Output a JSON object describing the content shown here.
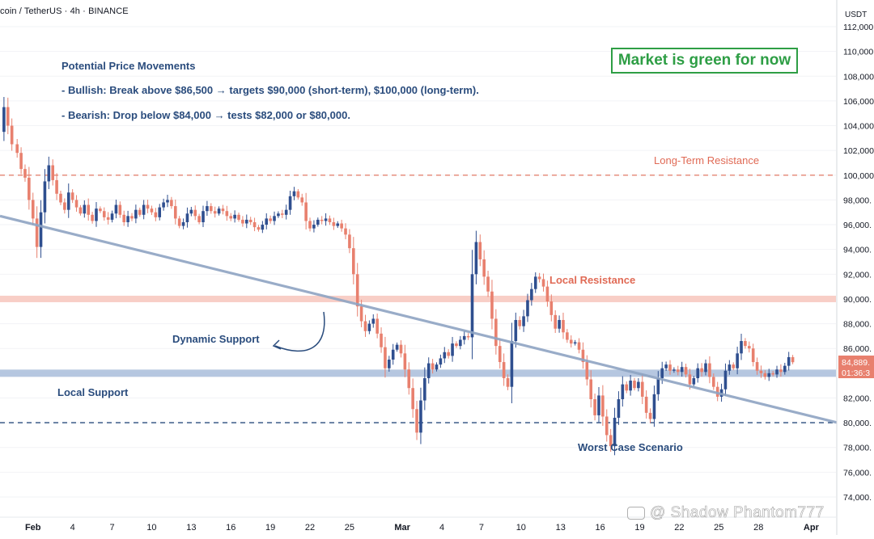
{
  "header": {
    "title": "coin / TetherUS · 4h · BINANCE",
    "currency": "USDT"
  },
  "colors": {
    "up": "#2f4f8f",
    "down": "#e8806e",
    "resistance": "#e06a55",
    "support_band": "#a9bddb",
    "local_resistance_band": "#f7c9c0",
    "trendline": "#8ea4c3",
    "annotation_blue": "#2a4c7d",
    "green": "#2e9e45",
    "price_tag": "#e8806e"
  },
  "annotations": {
    "heading": "Potential Price Movements",
    "bullish": "- Bullish: Break above $86,500 → targets $90,000 (short-term), $100,000 (long-term).",
    "bearish": "- Bearish: Drop below $84,000 → tests $82,000 or $80,000.",
    "green_box": "Market is green for now",
    "long_term_resistance": "Long-Term Resistance",
    "local_resistance": "Local Resistance",
    "dynamic_support": "Dynamic Support",
    "local_support": "Local Support",
    "worst_case": "Worst Case Scenario"
  },
  "price_tag": {
    "value": "84,889.",
    "countdown": "01:36:3"
  },
  "watermark": "@ Shadow Phantom777",
  "chart_data": {
    "type": "candlestick",
    "title": "coin / TetherUS · 4h · BINANCE",
    "y_axis": {
      "unit": "USDT",
      "range": [
        74000,
        112000
      ],
      "ticks": [
        "112,000",
        "110,000",
        "108,000",
        "106,000",
        "104,000",
        "102,000",
        "100,000",
        "98,000.",
        "96,000.",
        "94,000.",
        "92,000.",
        "90,000.",
        "88,000.",
        "86,000.",
        "84,000.",
        "82,000.",
        "80,000.",
        "78,000.",
        "76,000.",
        "74,000."
      ],
      "tick_values": [
        112000,
        110000,
        108000,
        106000,
        104000,
        102000,
        100000,
        98000,
        96000,
        94000,
        92000,
        90000,
        88000,
        86000,
        84000,
        82000,
        80000,
        78000,
        76000,
        74000
      ]
    },
    "x_axis": {
      "labels": [
        "Feb",
        "4",
        "7",
        "10",
        "13",
        "16",
        "19",
        "22",
        "25",
        "Mar",
        "4",
        "7",
        "10",
        "13",
        "16",
        "19",
        "22",
        "25",
        "28",
        "Apr"
      ],
      "label_days": [
        0,
        3,
        6,
        9,
        12,
        15,
        18,
        21,
        24,
        28,
        31,
        34,
        37,
        40,
        43,
        46,
        49,
        52,
        55,
        59
      ],
      "bold_labels": [
        "Feb",
        "Mar",
        "Apr"
      ]
    },
    "x_visible_days": [
      -2.5,
      61
    ],
    "levels": [
      {
        "name": "Long-Term Resistance",
        "value": 100000,
        "style": "dashed"
      },
      {
        "name": "Local Resistance",
        "value": 90000,
        "style": "band"
      },
      {
        "name": "Local Support",
        "value": 84000,
        "style": "band"
      },
      {
        "name": "Worst Case Scenario",
        "value": 80000,
        "style": "dashed"
      }
    ],
    "trendline": {
      "name": "Dynamic Support",
      "points": [
        [
          -2.5,
          96700
        ],
        [
          61,
          80000
        ]
      ]
    },
    "last_price": 84889,
    "price_path": [
      [
        -2.5,
        103500
      ],
      [
        -2.2,
        105500
      ],
      [
        -1.9,
        104000
      ],
      [
        -1.6,
        102500
      ],
      [
        -1.2,
        101800
      ],
      [
        -0.9,
        100500
      ],
      [
        -0.6,
        99800
      ],
      [
        -0.3,
        98000
      ],
      [
        0.0,
        96500
      ],
      [
        0.3,
        94200
      ],
      [
        0.6,
        97000
      ],
      [
        0.9,
        99500
      ],
      [
        1.2,
        100800
      ],
      [
        1.5,
        99600
      ],
      [
        1.8,
        98500
      ],
      [
        2.1,
        97800
      ],
      [
        2.4,
        97200
      ],
      [
        2.7,
        98600
      ],
      [
        3.0,
        98000
      ],
      [
        3.3,
        97400
      ],
      [
        3.6,
        96900
      ],
      [
        3.9,
        97600
      ],
      [
        4.2,
        96800
      ],
      [
        4.5,
        96300
      ],
      [
        4.8,
        97300
      ],
      [
        5.1,
        97100
      ],
      [
        5.4,
        96600
      ],
      [
        5.7,
        96400
      ],
      [
        6.0,
        96900
      ],
      [
        6.3,
        97600
      ],
      [
        6.6,
        96800
      ],
      [
        6.9,
        96200
      ],
      [
        7.2,
        96700
      ],
      [
        7.5,
        96500
      ],
      [
        7.8,
        97200
      ],
      [
        8.1,
        96800
      ],
      [
        8.4,
        97600
      ],
      [
        8.7,
        97300
      ],
      [
        9.0,
        97000
      ],
      [
        9.3,
        96600
      ],
      [
        9.6,
        97400
      ],
      [
        9.9,
        97800
      ],
      [
        10.2,
        98000
      ],
      [
        10.5,
        97500
      ],
      [
        10.8,
        96500
      ],
      [
        11.1,
        95900
      ],
      [
        11.4,
        96200
      ],
      [
        11.7,
        96900
      ],
      [
        12.0,
        97200
      ],
      [
        12.3,
        96700
      ],
      [
        12.6,
        96200
      ],
      [
        12.9,
        97100
      ],
      [
        13.2,
        97500
      ],
      [
        13.5,
        97100
      ],
      [
        13.8,
        96900
      ],
      [
        14.1,
        97300
      ],
      [
        14.4,
        97100
      ],
      [
        14.7,
        96700
      ],
      [
        15.0,
        96500
      ],
      [
        15.3,
        96800
      ],
      [
        15.6,
        96400
      ],
      [
        15.9,
        96100
      ],
      [
        16.2,
        96400
      ],
      [
        16.5,
        96200
      ],
      [
        16.8,
        95800
      ],
      [
        17.1,
        95600
      ],
      [
        17.4,
        96000
      ],
      [
        17.7,
        96500
      ],
      [
        18.0,
        96300
      ],
      [
        18.3,
        96700
      ],
      [
        18.6,
        96900
      ],
      [
        18.9,
        96800
      ],
      [
        19.2,
        97200
      ],
      [
        19.5,
        98300
      ],
      [
        19.8,
        98700
      ],
      [
        20.1,
        98200
      ],
      [
        20.4,
        97800
      ],
      [
        20.7,
        96300
      ],
      [
        21.0,
        95700
      ],
      [
        21.3,
        96000
      ],
      [
        21.6,
        96400
      ],
      [
        21.9,
        96300
      ],
      [
        22.2,
        96500
      ],
      [
        22.5,
        96200
      ],
      [
        22.8,
        95900
      ],
      [
        23.1,
        96100
      ],
      [
        23.4,
        95700
      ],
      [
        23.7,
        95200
      ],
      [
        24.0,
        94100
      ],
      [
        24.3,
        92000
      ],
      [
        24.6,
        89400
      ],
      [
        24.9,
        88200
      ],
      [
        25.2,
        87400
      ],
      [
        25.5,
        88000
      ],
      [
        25.8,
        88400
      ],
      [
        26.1,
        87200
      ],
      [
        26.4,
        86100
      ],
      [
        26.7,
        84400
      ],
      [
        27.0,
        85100
      ],
      [
        27.3,
        85900
      ],
      [
        27.6,
        86300
      ],
      [
        27.9,
        85600
      ],
      [
        28.2,
        84300
      ],
      [
        28.5,
        82800
      ],
      [
        28.8,
        81100
      ],
      [
        29.1,
        79200
      ],
      [
        29.4,
        81800
      ],
      [
        29.7,
        83600
      ],
      [
        30.0,
        84800
      ],
      [
        30.3,
        84300
      ],
      [
        30.6,
        84700
      ],
      [
        30.9,
        85200
      ],
      [
        31.2,
        85700
      ],
      [
        31.5,
        85400
      ],
      [
        31.8,
        86400
      ],
      [
        32.1,
        86200
      ],
      [
        32.4,
        86700
      ],
      [
        32.7,
        87000
      ],
      [
        33.0,
        86900
      ],
      [
        33.3,
        92000
      ],
      [
        33.6,
        94600
      ],
      [
        33.9,
        93200
      ],
      [
        34.2,
        91800
      ],
      [
        34.5,
        90600
      ],
      [
        34.8,
        88400
      ],
      [
        35.1,
        86200
      ],
      [
        35.4,
        84900
      ],
      [
        35.7,
        83600
      ],
      [
        36.0,
        82900
      ],
      [
        36.3,
        86600
      ],
      [
        36.6,
        88300
      ],
      [
        36.9,
        87800
      ],
      [
        37.2,
        88600
      ],
      [
        37.5,
        89900
      ],
      [
        37.8,
        90800
      ],
      [
        38.1,
        91800
      ],
      [
        38.4,
        91600
      ],
      [
        38.7,
        91000
      ],
      [
        39.0,
        89800
      ],
      [
        39.3,
        88700
      ],
      [
        39.6,
        87600
      ],
      [
        39.9,
        88300
      ],
      [
        40.2,
        87300
      ],
      [
        40.5,
        86700
      ],
      [
        40.8,
        86400
      ],
      [
        41.1,
        86500
      ],
      [
        41.4,
        85900
      ],
      [
        41.7,
        84900
      ],
      [
        42.0,
        83500
      ],
      [
        42.3,
        81900
      ],
      [
        42.6,
        80600
      ],
      [
        42.9,
        82200
      ],
      [
        43.2,
        80500
      ],
      [
        43.5,
        79000
      ],
      [
        43.8,
        78100
      ],
      [
        44.1,
        80400
      ],
      [
        44.4,
        81900
      ],
      [
        44.7,
        83100
      ],
      [
        45.0,
        82600
      ],
      [
        45.3,
        83400
      ],
      [
        45.6,
        82800
      ],
      [
        45.9,
        83300
      ],
      [
        46.2,
        82100
      ],
      [
        46.5,
        80800
      ],
      [
        46.8,
        80300
      ],
      [
        47.1,
        82300
      ],
      [
        47.4,
        83600
      ],
      [
        47.7,
        84400
      ],
      [
        48.0,
        84700
      ],
      [
        48.3,
        84200
      ],
      [
        48.6,
        84300
      ],
      [
        48.9,
        84100
      ],
      [
        49.2,
        84500
      ],
      [
        49.5,
        83900
      ],
      [
        49.8,
        83100
      ],
      [
        50.1,
        83600
      ],
      [
        50.4,
        84400
      ],
      [
        50.7,
        84100
      ],
      [
        51.0,
        84800
      ],
      [
        51.3,
        83700
      ],
      [
        51.6,
        82900
      ],
      [
        51.9,
        82100
      ],
      [
        52.2,
        82700
      ],
      [
        52.5,
        84200
      ],
      [
        52.8,
        84700
      ],
      [
        53.1,
        84400
      ],
      [
        53.4,
        85600
      ],
      [
        53.7,
        86600
      ],
      [
        54.0,
        86200
      ],
      [
        54.3,
        86000
      ],
      [
        54.6,
        84900
      ],
      [
        54.9,
        84200
      ],
      [
        55.2,
        84000
      ],
      [
        55.5,
        83700
      ],
      [
        55.8,
        84000
      ],
      [
        56.1,
        83900
      ],
      [
        56.4,
        84300
      ],
      [
        56.7,
        84100
      ],
      [
        57.0,
        84600
      ],
      [
        57.3,
        85300
      ],
      [
        57.6,
        84889
      ]
    ]
  }
}
